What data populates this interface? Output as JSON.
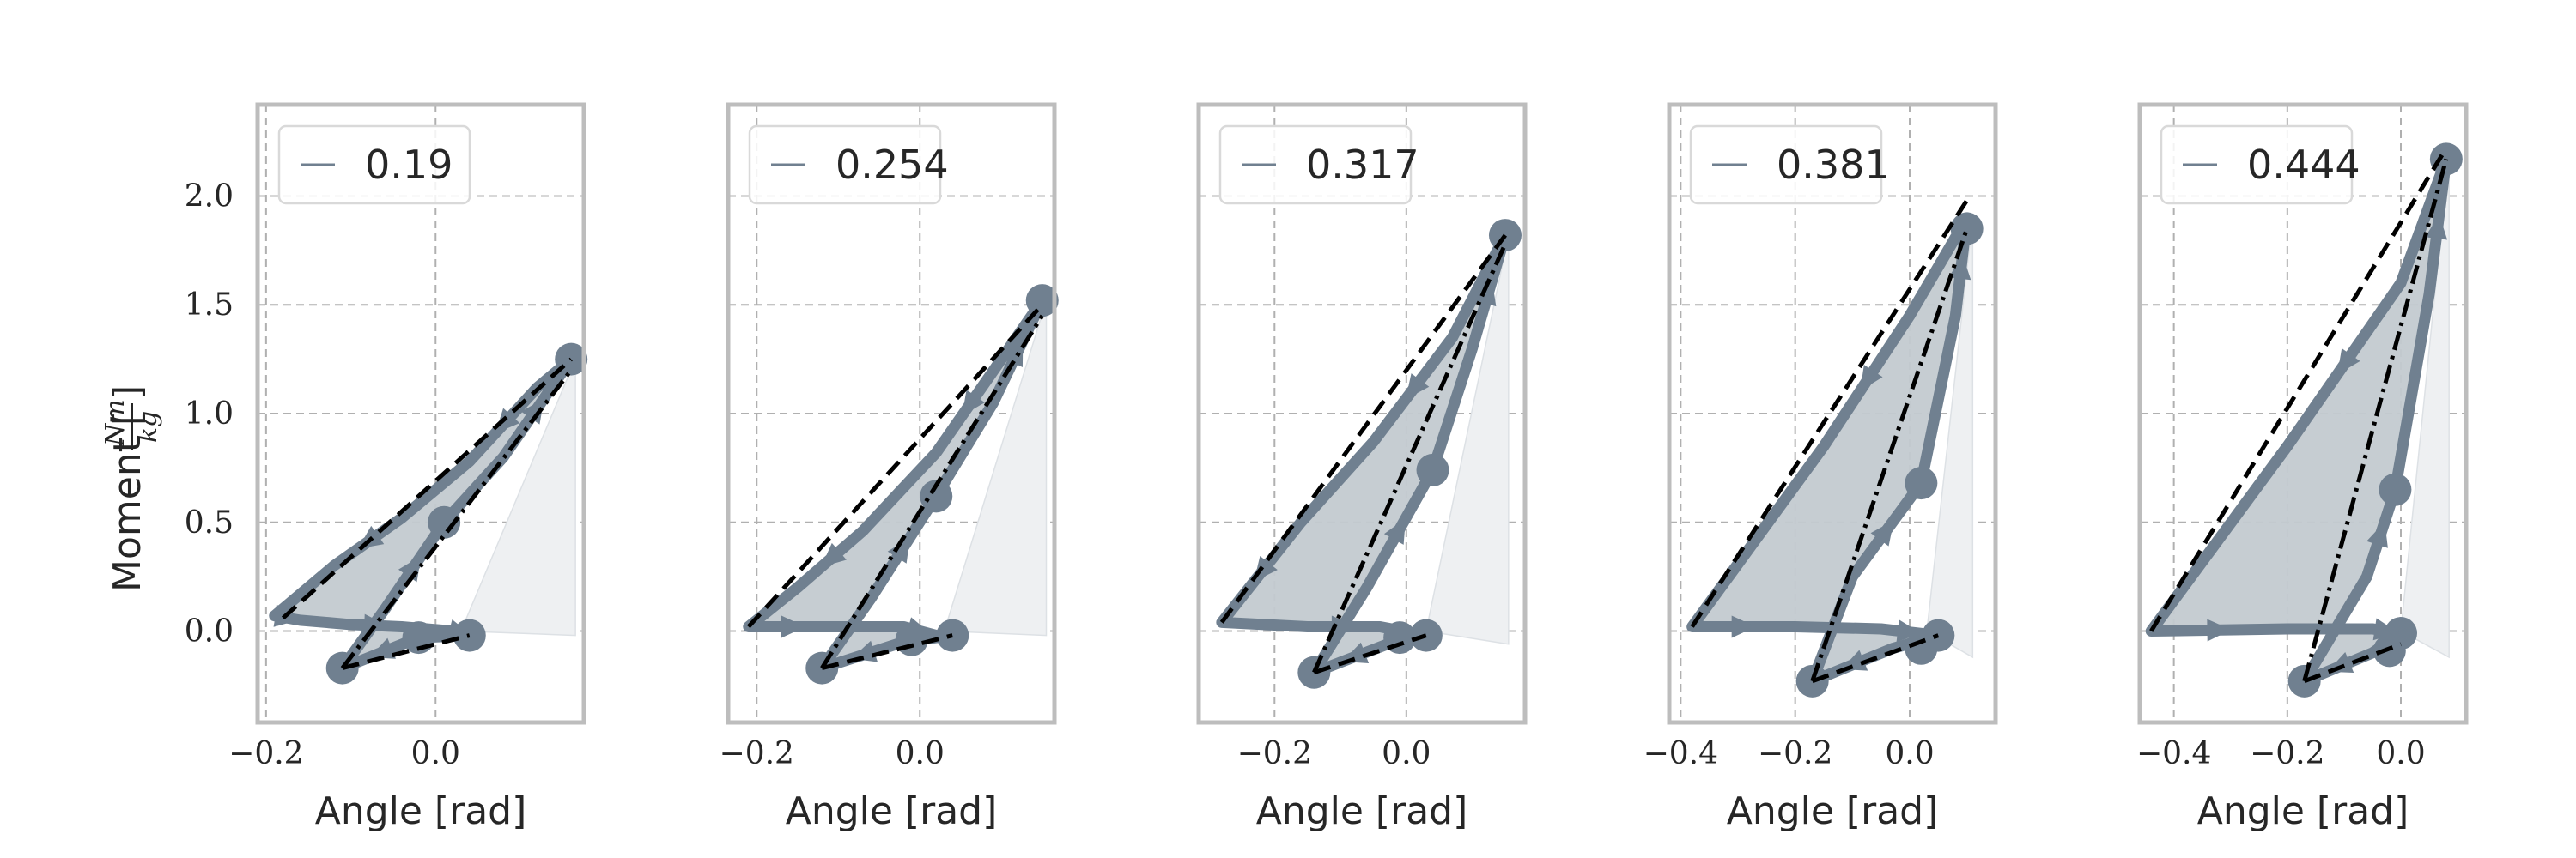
{
  "chart_data": {
    "type": "line",
    "ylabel": "Moment [Nm/kg]",
    "ylabel_parts": {
      "prefix": "Moment [",
      "numerator": "Nm",
      "denominator": "kg",
      "suffix": "]"
    },
    "xlabel": "Angle [rad]",
    "ylim": [
      -0.42,
      2.42
    ],
    "yticks": [
      0.0,
      0.5,
      1.0,
      1.5,
      2.0
    ],
    "ytick_labels": [
      "0.0",
      "0.5",
      "1.0",
      "1.5",
      "2.0"
    ],
    "grid": true,
    "legend_placement": "upper-left",
    "colors": {
      "main": "#708090",
      "loop_fill": "#c3cad0",
      "work_fill": "#eef0f2",
      "dash": "#000000",
      "frame": "#bdbdbd",
      "grid": "#b0b0b0"
    },
    "panels": [
      {
        "legend": "0.19",
        "xlim": [
          -0.21,
          0.175
        ],
        "xticks": [
          -0.2,
          0.0
        ],
        "xtick_labels": [
          "−0.2",
          "0.0"
        ],
        "loop": [
          [
            0.04,
            -0.02
          ],
          [
            -0.02,
            -0.03
          ],
          [
            -0.11,
            -0.17
          ],
          [
            -0.06,
            0.1
          ],
          [
            0.01,
            0.5
          ],
          [
            0.08,
            0.8
          ],
          [
            0.16,
            1.25
          ],
          [
            0.12,
            1.12
          ],
          [
            0.04,
            0.78
          ],
          [
            -0.04,
            0.52
          ],
          [
            -0.12,
            0.3
          ],
          [
            -0.19,
            0.07
          ],
          [
            -0.16,
            0.05
          ],
          [
            -0.1,
            0.03
          ],
          [
            -0.04,
            0.02
          ],
          [
            0.02,
            0.0
          ],
          [
            0.04,
            -0.02
          ]
        ],
        "markers": [
          [
            0.04,
            -0.02
          ],
          [
            -0.02,
            -0.03
          ],
          [
            -0.11,
            -0.17
          ],
          [
            0.01,
            0.5
          ],
          [
            0.16,
            1.25
          ]
        ],
        "dashed": [
          [
            [
              -0.18,
              0.06
            ],
            [
              0.16,
              1.25
            ]
          ],
          [
            [
              -0.11,
              -0.17
            ],
            [
              0.04,
              -0.02
            ]
          ]
        ],
        "dashdot": [
          [
            [
              -0.11,
              -0.17
            ],
            [
              0.16,
              1.2
            ]
          ]
        ],
        "work_region": [
          [
            0.03,
            0.0
          ],
          [
            0.165,
            1.25
          ],
          [
            0.165,
            -0.02
          ]
        ]
      },
      {
        "legend": "0.254",
        "xlim": [
          -0.235,
          0.165
        ],
        "xticks": [
          -0.2,
          0.0
        ],
        "xtick_labels": [
          "−0.2",
          "0.0"
        ],
        "loop": [
          [
            0.04,
            -0.02
          ],
          [
            -0.02,
            -0.05
          ],
          [
            -0.12,
            -0.17
          ],
          [
            -0.06,
            0.15
          ],
          [
            0.02,
            0.62
          ],
          [
            0.09,
            1.05
          ],
          [
            0.15,
            1.52
          ],
          [
            0.1,
            1.25
          ],
          [
            0.02,
            0.82
          ],
          [
            -0.07,
            0.46
          ],
          [
            -0.15,
            0.2
          ],
          [
            -0.21,
            0.02
          ],
          [
            -0.1,
            0.02
          ],
          [
            -0.02,
            0.02
          ],
          [
            0.02,
            -0.02
          ],
          [
            0.04,
            -0.02
          ]
        ],
        "markers": [
          [
            0.04,
            -0.02
          ],
          [
            -0.01,
            -0.04
          ],
          [
            -0.12,
            -0.17
          ],
          [
            0.02,
            0.62
          ],
          [
            0.15,
            1.52
          ]
        ],
        "dashed": [
          [
            [
              -0.21,
              0.02
            ],
            [
              0.15,
              1.5
            ]
          ],
          [
            [
              -0.12,
              -0.17
            ],
            [
              0.04,
              -0.02
            ]
          ]
        ],
        "dashdot": [
          [
            [
              -0.12,
              -0.17
            ],
            [
              0.15,
              1.45
            ]
          ]
        ],
        "work_region": [
          [
            0.03,
            0.0
          ],
          [
            0.155,
            1.52
          ],
          [
            0.155,
            -0.02
          ]
        ]
      },
      {
        "legend": "0.317",
        "xlim": [
          -0.315,
          0.18
        ],
        "xticks": [
          -0.2,
          0.0
        ],
        "xtick_labels": [
          "−0.2",
          "0.0"
        ],
        "loop": [
          [
            0.03,
            -0.02
          ],
          [
            -0.02,
            -0.05
          ],
          [
            -0.14,
            -0.19
          ],
          [
            -0.06,
            0.2
          ],
          [
            0.04,
            0.74
          ],
          [
            0.1,
            1.3
          ],
          [
            0.15,
            1.82
          ],
          [
            0.07,
            1.35
          ],
          [
            -0.05,
            0.87
          ],
          [
            -0.16,
            0.5
          ],
          [
            -0.28,
            0.04
          ],
          [
            -0.15,
            0.02
          ],
          [
            -0.04,
            0.02
          ],
          [
            0.03,
            -0.02
          ]
        ],
        "markers": [
          [
            0.03,
            -0.02
          ],
          [
            -0.01,
            -0.03
          ],
          [
            -0.14,
            -0.19
          ],
          [
            0.04,
            0.74
          ],
          [
            0.15,
            1.82
          ]
        ],
        "dashed": [
          [
            [
              -0.28,
              0.04
            ],
            [
              0.15,
              1.82
            ]
          ],
          [
            [
              -0.14,
              -0.19
            ],
            [
              0.03,
              -0.02
            ]
          ]
        ],
        "dashdot": [
          [
            [
              -0.14,
              -0.19
            ],
            [
              0.15,
              1.78
            ]
          ]
        ],
        "work_region": [
          [
            0.03,
            0.0
          ],
          [
            0.155,
            1.82
          ],
          [
            0.155,
            -0.06
          ]
        ]
      },
      {
        "legend": "0.381",
        "xlim": [
          -0.42,
          0.15
        ],
        "xticks": [
          -0.4,
          -0.2,
          0.0
        ],
        "xtick_labels": [
          "−0.4",
          "−0.2",
          "0.0"
        ],
        "loop": [
          [
            0.05,
            -0.02
          ],
          [
            -0.03,
            -0.08
          ],
          [
            -0.17,
            -0.23
          ],
          [
            -0.1,
            0.25
          ],
          [
            0.02,
            0.68
          ],
          [
            0.08,
            1.45
          ],
          [
            0.1,
            1.9
          ],
          [
            0.0,
            1.45
          ],
          [
            -0.15,
            0.85
          ],
          [
            -0.38,
            0.02
          ],
          [
            -0.2,
            0.02
          ],
          [
            -0.05,
            0.01
          ],
          [
            0.05,
            -0.02
          ]
        ],
        "markers": [
          [
            0.05,
            -0.02
          ],
          [
            0.02,
            -0.08
          ],
          [
            -0.17,
            -0.23
          ],
          [
            0.02,
            0.68
          ],
          [
            0.1,
            1.85
          ]
        ],
        "dashed": [
          [
            [
              -0.38,
              0.02
            ],
            [
              0.1,
              1.98
            ]
          ],
          [
            [
              -0.17,
              -0.23
            ],
            [
              0.05,
              -0.02
            ]
          ]
        ],
        "dashdot": [
          [
            [
              -0.17,
              -0.23
            ],
            [
              0.1,
              1.85
            ]
          ]
        ],
        "work_region": [
          [
            0.03,
            0.0
          ],
          [
            0.11,
            1.9
          ],
          [
            0.11,
            -0.12
          ]
        ]
      },
      {
        "legend": "0.444",
        "xlim": [
          -0.46,
          0.115
        ],
        "xticks": [
          -0.4,
          -0.2,
          0.0
        ],
        "xtick_labels": [
          "−0.4",
          "−0.2",
          "0.0"
        ],
        "loop": [
          [
            0.0,
            -0.01
          ],
          [
            -0.05,
            -0.1
          ],
          [
            -0.17,
            -0.23
          ],
          [
            -0.06,
            0.25
          ],
          [
            -0.01,
            0.65
          ],
          [
            0.05,
            1.55
          ],
          [
            0.08,
            2.17
          ],
          [
            0.0,
            1.6
          ],
          [
            -0.2,
            0.85
          ],
          [
            -0.44,
            0.0
          ],
          [
            -0.2,
            0.01
          ],
          [
            -0.05,
            0.01
          ],
          [
            0.0,
            -0.01
          ]
        ],
        "markers": [
          [
            0.0,
            -0.01
          ],
          [
            -0.02,
            -0.09
          ],
          [
            -0.17,
            -0.23
          ],
          [
            -0.01,
            0.65
          ],
          [
            0.08,
            2.17
          ]
        ],
        "dashed": [
          [
            [
              -0.44,
              0.0
            ],
            [
              0.08,
              2.22
            ]
          ],
          [
            [
              -0.17,
              -0.23
            ],
            [
              0.0,
              -0.06
            ]
          ]
        ],
        "dashdot": [
          [
            [
              -0.17,
              -0.23
            ],
            [
              0.08,
              2.17
            ]
          ]
        ],
        "work_region": [
          [
            0.0,
            0.0
          ],
          [
            0.085,
            2.2
          ],
          [
            0.085,
            -0.12
          ]
        ]
      }
    ]
  }
}
